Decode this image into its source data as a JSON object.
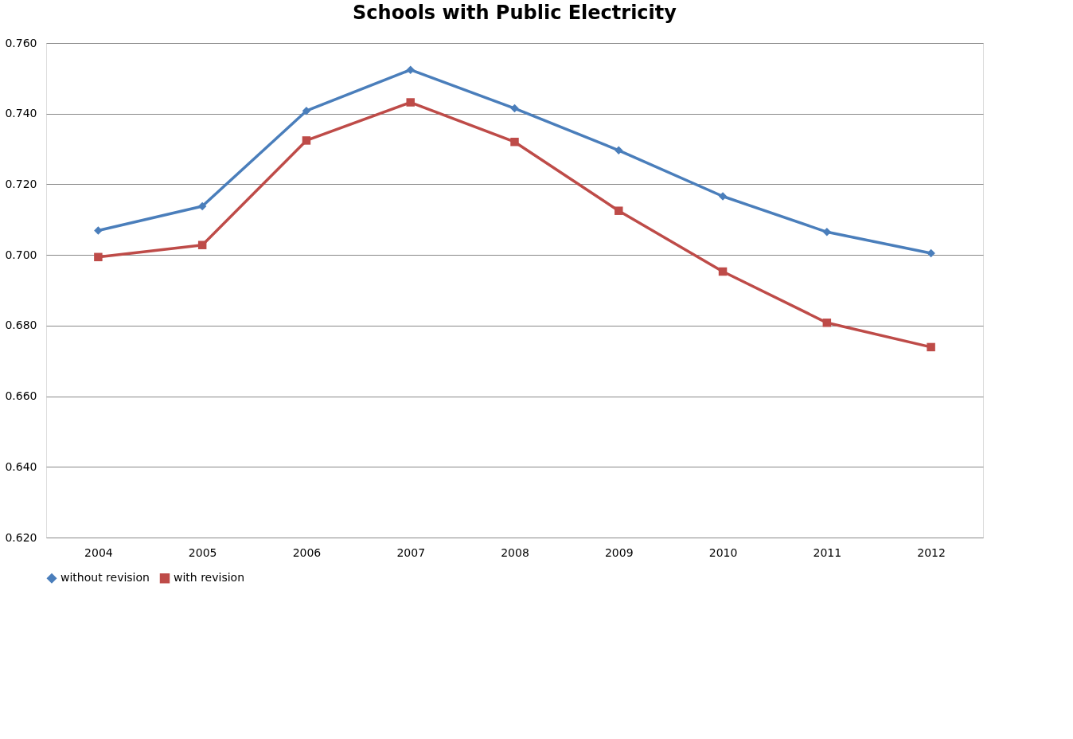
{
  "chart_data": {
    "type": "line",
    "title": "Schools with Public Electricity",
    "categories": [
      "2004",
      "2005",
      "2006",
      "2007",
      "2008",
      "2009",
      "2010",
      "2011",
      "2012"
    ],
    "series": [
      {
        "name": "without revision",
        "color": "#4a7ebb",
        "marker": "diamond",
        "values": [
          0.7069,
          0.7138,
          0.7408,
          0.7524,
          0.7415,
          0.7296,
          0.7166,
          0.7065,
          0.7005
        ]
      },
      {
        "name": "with revision",
        "color": "#be4b48",
        "marker": "square",
        "values": [
          0.6994,
          0.7028,
          0.7324,
          0.7432,
          0.732,
          0.7125,
          0.6953,
          0.6808,
          0.6739
        ]
      }
    ],
    "ylim": [
      0.62,
      0.76
    ],
    "yticks": [
      {
        "value": 0.62,
        "label": "0.620"
      },
      {
        "value": 0.64,
        "label": "0.640"
      },
      {
        "value": 0.66,
        "label": "0.660"
      },
      {
        "value": 0.68,
        "label": "0.680"
      },
      {
        "value": 0.7,
        "label": "0.700"
      },
      {
        "value": 0.72,
        "label": "0.720"
      },
      {
        "value": 0.74,
        "label": "0.740"
      },
      {
        "value": 0.76,
        "label": "0.760"
      }
    ],
    "grid": "y",
    "legend": "bottom",
    "line_style": "solid"
  }
}
